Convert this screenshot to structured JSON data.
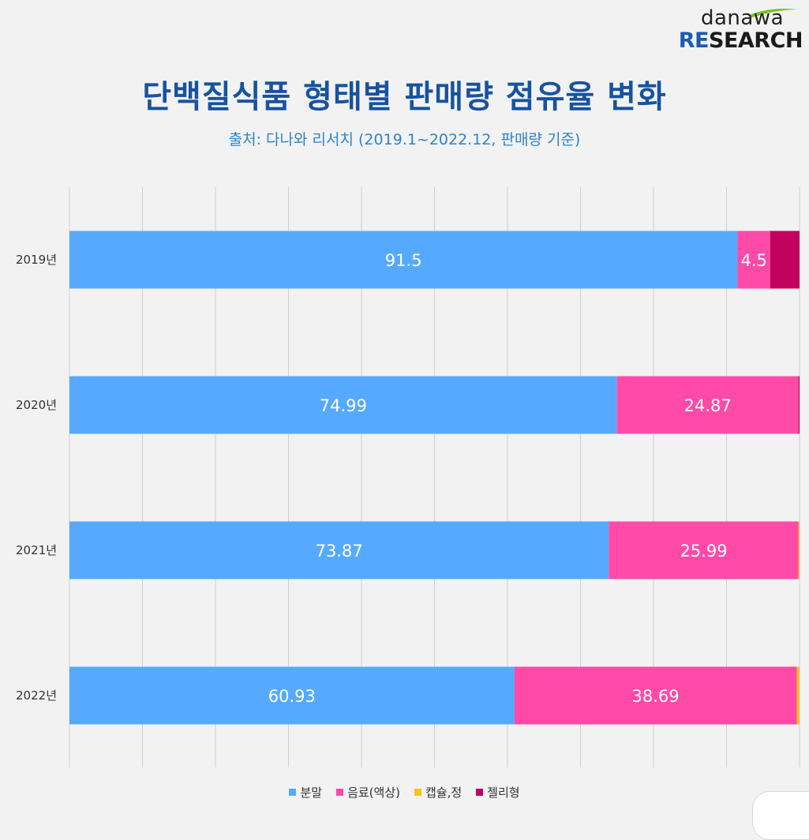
{
  "logo": {
    "top": "danawa",
    "bottom_re": "RE",
    "bottom_rest": "SEARCH"
  },
  "title": "단백질식품 형태별 판매량 점유율 변화",
  "subtitle": "출처: 다나와 리서치 (2019.1~2022.12, 판매량 기준)",
  "chart_data": {
    "type": "bar",
    "orientation": "horizontal",
    "stacked": true,
    "categories": [
      "2019년",
      "2020년",
      "2021년",
      "2022년"
    ],
    "series": [
      {
        "name": "분말",
        "color": "#55aaff",
        "values": [
          91.5,
          74.99,
          73.87,
          60.93
        ],
        "labels": [
          "91.5",
          "74.99",
          "73.87",
          "60.93"
        ]
      },
      {
        "name": "음료(액상)",
        "color": "#ff4aa8",
        "values": [
          4.5,
          24.87,
          25.99,
          38.69
        ],
        "labels": [
          "4.5",
          "24.87",
          "25.99",
          "38.69"
        ]
      },
      {
        "name": "캡슐,정",
        "color": "#ffbf1f",
        "values": [
          0.0,
          0.0,
          0.14,
          0.38
        ],
        "labels": [
          "",
          "",
          "",
          ""
        ]
      },
      {
        "name": "젤리형",
        "color": "#c2005e",
        "values": [
          4.0,
          0.14,
          0.0,
          0.0
        ],
        "labels": [
          "",
          "",
          "",
          ""
        ]
      }
    ],
    "xlim": [
      0,
      100
    ],
    "grid": true,
    "legend": "bottom-center"
  }
}
